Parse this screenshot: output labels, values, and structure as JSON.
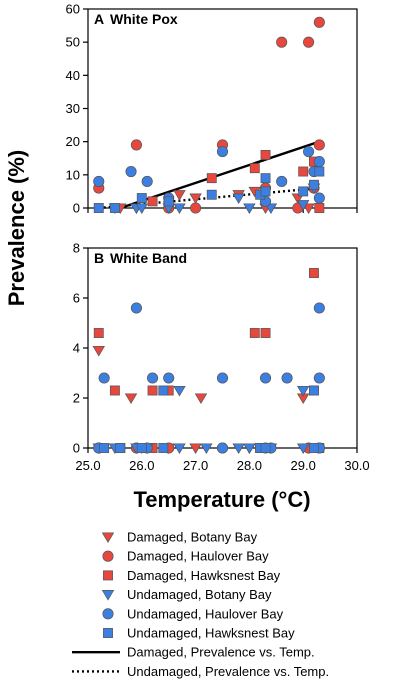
{
  "colors": {
    "red": "#e8473e",
    "blue": "#3c7fe0",
    "edge": "#555555"
  },
  "y_axis_label": "Prevalence (%)",
  "x_axis_label": "Temperature (°C)",
  "chart_data": [
    {
      "type": "scatter",
      "panel_letter": "A",
      "title": "White Pox",
      "xlim": [
        25.0,
        30.0
      ],
      "ylim": [
        0,
        60
      ],
      "xticks": [
        "25.0",
        "26.0",
        "27.0",
        "28.0",
        "29.0",
        "30.0"
      ],
      "yticks": [
        "0",
        "10",
        "20",
        "30",
        "40",
        "50",
        "60"
      ],
      "series": [
        {
          "name": "Damaged, Botany Bay",
          "marker": "triangle-down",
          "color": "red",
          "points": [
            [
              25.6,
              0
            ],
            [
              25.9,
              0
            ],
            [
              26.7,
              4
            ],
            [
              27.0,
              3
            ],
            [
              27.8,
              4
            ],
            [
              28.1,
              5
            ],
            [
              28.3,
              0
            ],
            [
              28.9,
              3
            ],
            [
              29.1,
              0
            ],
            [
              29.2,
              6
            ]
          ]
        },
        {
          "name": "Damaged, Haulover Bay",
          "marker": "circle",
          "color": "red",
          "points": [
            [
              25.2,
              6
            ],
            [
              25.9,
              19
            ],
            [
              26.5,
              0
            ],
            [
              27.0,
              0
            ],
            [
              27.5,
              19
            ],
            [
              28.3,
              6
            ],
            [
              28.6,
              50
            ],
            [
              28.9,
              0
            ],
            [
              29.1,
              50
            ],
            [
              29.3,
              56
            ],
            [
              29.3,
              19
            ],
            [
              29.2,
              6
            ]
          ]
        },
        {
          "name": "Damaged, Hawksnest Bay",
          "marker": "square",
          "color": "red",
          "points": [
            [
              26.2,
              2
            ],
            [
              27.3,
              9
            ],
            [
              28.1,
              12
            ],
            [
              28.3,
              16
            ],
            [
              29.0,
              11
            ],
            [
              29.2,
              14
            ],
            [
              29.3,
              0
            ]
          ]
        },
        {
          "name": "Undamaged, Botany Bay",
          "marker": "triangle-down",
          "color": "blue",
          "points": [
            [
              25.5,
              0
            ],
            [
              25.9,
              0
            ],
            [
              26.0,
              0
            ],
            [
              26.5,
              0
            ],
            [
              26.7,
              0
            ],
            [
              27.8,
              3
            ],
            [
              28.0,
              0
            ],
            [
              28.4,
              0
            ],
            [
              29.0,
              1
            ],
            [
              29.2,
              6
            ]
          ]
        },
        {
          "name": "Undamaged, Haulover Bay",
          "marker": "circle",
          "color": "blue",
          "points": [
            [
              25.2,
              8
            ],
            [
              25.8,
              11
            ],
            [
              26.1,
              8
            ],
            [
              26.5,
              3
            ],
            [
              27.5,
              17
            ],
            [
              28.3,
              2
            ],
            [
              28.6,
              8
            ],
            [
              29.1,
              17
            ],
            [
              29.3,
              3
            ],
            [
              29.3,
              14
            ],
            [
              29.2,
              11
            ]
          ]
        },
        {
          "name": "Undamaged, Hawksnest Bay",
          "marker": "square",
          "color": "blue",
          "points": [
            [
              25.2,
              0
            ],
            [
              25.5,
              0
            ],
            [
              26.0,
              3
            ],
            [
              26.5,
              2
            ],
            [
              27.3,
              4
            ],
            [
              28.2,
              4
            ],
            [
              28.3,
              9
            ],
            [
              28.3,
              5
            ],
            [
              29.0,
              5
            ],
            [
              29.2,
              7
            ],
            [
              29.3,
              11
            ]
          ]
        }
      ],
      "lines": [
        {
          "name": "Damaged, Prevalence vs. Temp.",
          "style": "solid",
          "x": [
            25.6,
            29.3
          ],
          "y": [
            0,
            20
          ]
        },
        {
          "name": "Undamaged, Prevalence vs. Temp.",
          "style": "dotted",
          "x": [
            25.2,
            29.3
          ],
          "y": [
            0,
            6
          ]
        }
      ]
    },
    {
      "type": "scatter",
      "panel_letter": "B",
      "title": "White Band",
      "xlim": [
        25.0,
        30.0
      ],
      "ylim": [
        0,
        8
      ],
      "xticks": [
        "25.0",
        "26.0",
        "27.0",
        "28.0",
        "29.0",
        "30.0"
      ],
      "yticks": [
        "0",
        "2",
        "4",
        "6",
        "8"
      ],
      "series": [
        {
          "name": "Damaged, Botany Bay",
          "marker": "triangle-down",
          "color": "red",
          "points": [
            [
              25.2,
              3.9
            ],
            [
              25.8,
              2.0
            ],
            [
              27.1,
              2.0
            ],
            [
              29.0,
              2.0
            ],
            [
              25.2,
              0
            ],
            [
              26.0,
              0
            ],
            [
              26.5,
              0
            ],
            [
              27.0,
              0
            ],
            [
              28.0,
              0
            ],
            [
              29.1,
              0
            ]
          ]
        },
        {
          "name": "Damaged, Haulover Bay",
          "marker": "circle",
          "color": "red",
          "points": [
            [
              25.2,
              0
            ],
            [
              25.9,
              0
            ],
            [
              26.5,
              0
            ],
            [
              27.5,
              0
            ],
            [
              28.3,
              0
            ],
            [
              29.1,
              0
            ],
            [
              29.3,
              0
            ]
          ]
        },
        {
          "name": "Damaged, Hawksnest Bay",
          "marker": "square",
          "color": "red",
          "points": [
            [
              25.2,
              4.6
            ],
            [
              25.5,
              2.3
            ],
            [
              26.2,
              2.3
            ],
            [
              26.5,
              2.3
            ],
            [
              28.1,
              4.6
            ],
            [
              28.3,
              4.6
            ],
            [
              29.2,
              7.0
            ],
            [
              29.2,
              2.3
            ],
            [
              25.6,
              0
            ],
            [
              26.2,
              0
            ],
            [
              28.2,
              0
            ],
            [
              29.3,
              0
            ]
          ]
        },
        {
          "name": "Undamaged, Botany Bay",
          "marker": "triangle-down",
          "color": "blue",
          "points": [
            [
              26.7,
              2.3
            ],
            [
              29.0,
              2.3
            ],
            [
              25.5,
              0
            ],
            [
              25.9,
              0
            ],
            [
              26.1,
              0
            ],
            [
              26.7,
              0
            ],
            [
              27.2,
              0
            ],
            [
              27.8,
              0
            ],
            [
              28.0,
              0
            ],
            [
              28.4,
              0
            ],
            [
              29.0,
              0
            ]
          ]
        },
        {
          "name": "Undamaged, Haulover Bay",
          "marker": "circle",
          "color": "blue",
          "points": [
            [
              25.3,
              2.8
            ],
            [
              25.9,
              5.6
            ],
            [
              26.2,
              2.8
            ],
            [
              26.5,
              2.8
            ],
            [
              27.5,
              2.8
            ],
            [
              28.3,
              2.8
            ],
            [
              28.7,
              2.8
            ],
            [
              29.3,
              5.6
            ],
            [
              29.3,
              2.8
            ],
            [
              25.2,
              0
            ],
            [
              26.1,
              0
            ],
            [
              27.5,
              0
            ],
            [
              28.4,
              0
            ],
            [
              29.3,
              0
            ]
          ]
        },
        {
          "name": "Undamaged, Hawksnest Bay",
          "marker": "square",
          "color": "blue",
          "points": [
            [
              26.4,
              2.3
            ],
            [
              29.2,
              2.3
            ],
            [
              25.3,
              0
            ],
            [
              25.6,
              0
            ],
            [
              26.0,
              0
            ],
            [
              26.4,
              0
            ],
            [
              28.2,
              0
            ],
            [
              28.3,
              0
            ],
            [
              29.2,
              0
            ]
          ]
        }
      ]
    }
  ],
  "legend": [
    {
      "marker": "triangle-down",
      "color": "red",
      "label": "Damaged, Botany Bay"
    },
    {
      "marker": "circle",
      "color": "red",
      "label": "Damaged, Haulover Bay"
    },
    {
      "marker": "square",
      "color": "red",
      "label": "Damaged, Hawksnest Bay"
    },
    {
      "marker": "triangle-down",
      "color": "blue",
      "label": "Undamaged, Botany Bay"
    },
    {
      "marker": "circle",
      "color": "blue",
      "label": "Undamaged, Haulover Bay"
    },
    {
      "marker": "square",
      "color": "blue",
      "label": "Undamaged, Hawksnest Bay"
    },
    {
      "marker": "line-solid",
      "color": "black",
      "label": "Damaged, Prevalence vs. Temp."
    },
    {
      "marker": "line-dotted",
      "color": "black",
      "label": "Undamaged, Prevalence vs. Temp."
    }
  ]
}
